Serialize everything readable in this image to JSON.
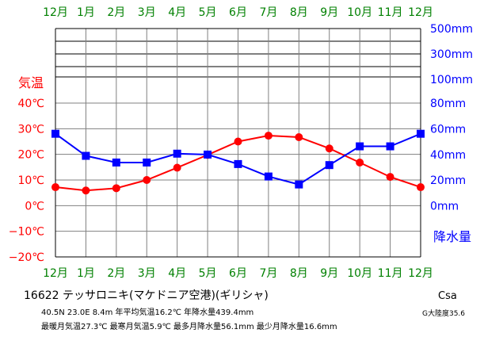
{
  "chart_data": {
    "type": "line",
    "categories": [
      "12月",
      "1月",
      "2月",
      "3月",
      "4月",
      "5月",
      "6月",
      "7月",
      "8月",
      "9月",
      "10月",
      "11月",
      "12月"
    ],
    "series": [
      {
        "name": "気温",
        "axis": "left",
        "color": "#ff0000",
        "marker": "circle",
        "values": [
          7.2,
          5.9,
          6.8,
          10.0,
          14.8,
          19.8,
          25.0,
          27.3,
          26.7,
          22.3,
          16.8,
          11.2,
          7.2
        ]
      },
      {
        "name": "降水量",
        "axis": "right",
        "color": "#0000ff",
        "marker": "square",
        "values": [
          56.1,
          38.9,
          33.7,
          33.7,
          40.6,
          39.9,
          32.5,
          22.8,
          16.6,
          31.7,
          46.3,
          46.3,
          56.1
        ]
      }
    ],
    "left_axis": {
      "label": "気温",
      "ticks": [
        "40℃",
        "30℃",
        "20℃",
        "10℃",
        "0℃",
        "−10℃",
        "−20℃"
      ],
      "range": [
        -20,
        40
      ]
    },
    "right_axis": {
      "label": "降水量",
      "ticks": [
        "500mm",
        "300mm",
        "100mm",
        "80mm",
        "60mm",
        "40mm",
        "20mm",
        "0mm"
      ],
      "range": [
        0,
        80
      ],
      "compressed_ticks": [
        "500mm",
        "300mm",
        "100mm"
      ]
    },
    "grid": true
  },
  "info": {
    "station": "16622  テッサロニキ(マケドニア空港)(ギリシャ)",
    "line2": "40.5N  23.0E  8.4m  年平均気温16.2℃  年降水量439.4mm",
    "line3": "最暖月気温27.3℃  最寒月気温5.9℃  最多月降水量56.1mm  最少月降水量16.6mm",
    "climate": "Csa",
    "continentality": "G大陸度35.6"
  },
  "colors": {
    "temperature": "#ff0000",
    "precipitation": "#0000ff",
    "month_labels": "#008000",
    "grid": "#808080",
    "axis": "#000000"
  }
}
